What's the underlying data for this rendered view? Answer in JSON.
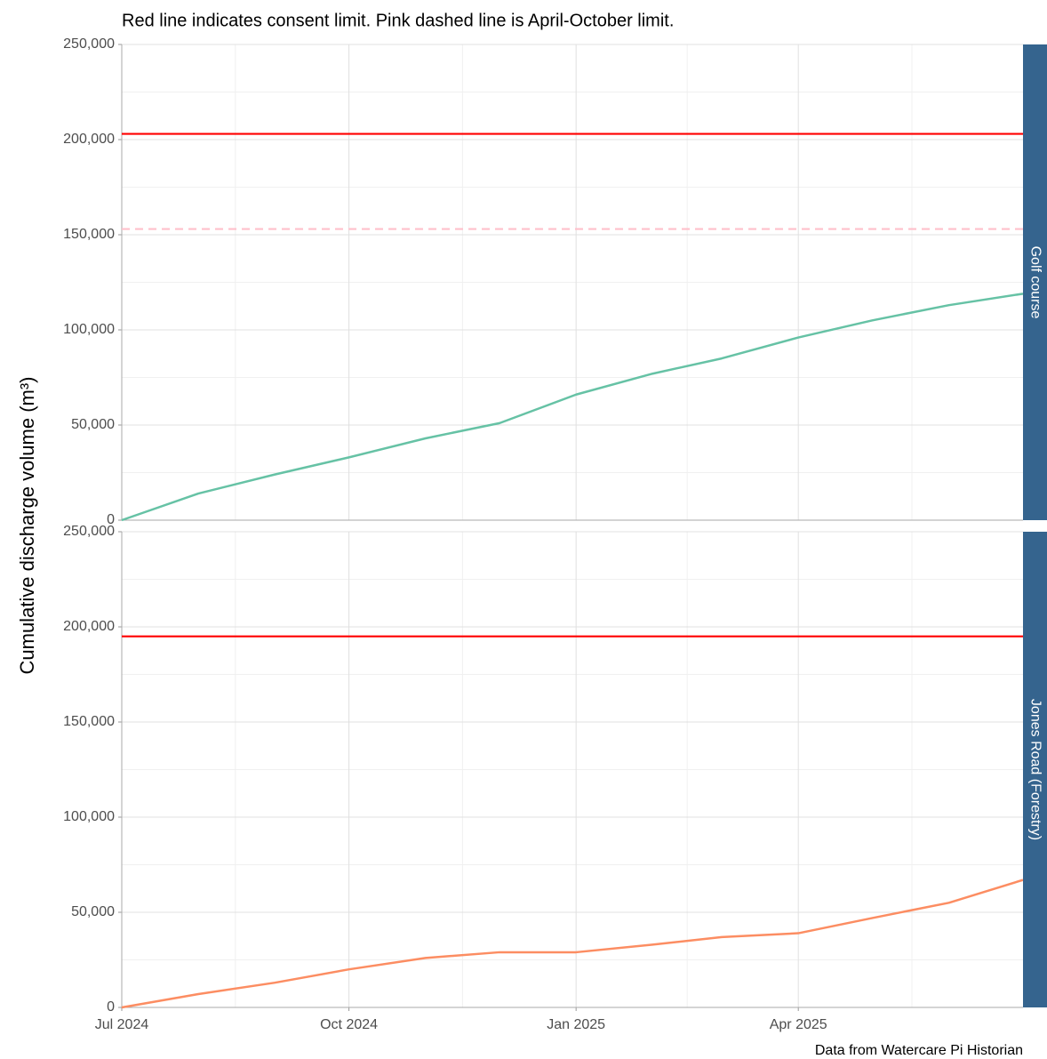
{
  "title": "Red line indicates consent limit. Pink dashed line is April-October limit.",
  "ylabel": "Cumulative discharge volume (m³)",
  "caption": "Data from Watercare Pi Historian",
  "chart_data": [
    {
      "type": "line",
      "x": [
        "2024-07",
        "2024-08",
        "2024-09",
        "2024-10",
        "2024-11",
        "2024-12",
        "2025-01",
        "2025-02",
        "2025-03",
        "2025-04",
        "2025-05",
        "2025-06",
        "2025-07"
      ],
      "series": [
        {
          "name": "Golf course",
          "color": "#66c2a5",
          "values": [
            0,
            14000,
            24000,
            33000,
            43000,
            51000,
            66000,
            77000,
            85000,
            96000,
            105000,
            113000,
            119000
          ]
        }
      ],
      "hlines": [
        {
          "value": 203000,
          "color": "#ff0000",
          "style": "solid"
        },
        {
          "value": 153000,
          "color": "#ffc0cb",
          "style": "dashed"
        }
      ],
      "xlim": [
        "2024-07",
        "2025-07"
      ],
      "ylim": [
        0,
        250000
      ],
      "yticks": [
        0,
        {
          "value": 50000,
          "label": "50,000"
        },
        {
          "value": 100000,
          "label": "100,000"
        },
        {
          "value": 150000,
          "label": "150,000"
        },
        {
          "value": 200000,
          "label": "200,000"
        },
        {
          "value": 250000,
          "label": "250,000"
        }
      ],
      "grid": true
    },
    {
      "type": "line",
      "x": [
        "2024-07",
        "2024-08",
        "2024-09",
        "2024-10",
        "2024-11",
        "2024-12",
        "2025-01",
        "2025-02",
        "2025-03",
        "2025-04",
        "2025-05",
        "2025-06",
        "2025-07"
      ],
      "series": [
        {
          "name": "Jones Road (Forestry)",
          "color": "#fc8d62",
          "values": [
            0,
            7000,
            13000,
            20000,
            26000,
            29000,
            29000,
            33000,
            37000,
            39000,
            47000,
            55000,
            67000
          ]
        }
      ],
      "hlines": [
        {
          "value": 195000,
          "color": "#ff0000",
          "style": "solid"
        }
      ],
      "xlim": [
        "2024-07",
        "2025-07"
      ],
      "xticks": [
        {
          "value": "2024-07",
          "label": "Jul 2024"
        },
        {
          "value": "2024-10",
          "label": "Oct 2024"
        },
        {
          "value": "2025-01",
          "label": "Jan 2025"
        },
        {
          "value": "2025-04",
          "label": "Apr 2025"
        }
      ],
      "ylim": [
        0,
        250000
      ],
      "yticks": [
        0,
        {
          "value": 50000,
          "label": "50,000"
        },
        {
          "value": 100000,
          "label": "100,000"
        },
        {
          "value": 150000,
          "label": "150,000"
        },
        {
          "value": 200000,
          "label": "200,000"
        },
        {
          "value": 250000,
          "label": "250,000"
        }
      ],
      "grid": true
    }
  ]
}
